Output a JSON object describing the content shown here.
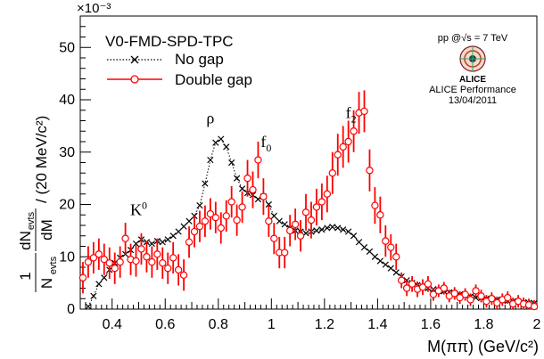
{
  "chart_data": {
    "type": "scatter",
    "title": "",
    "xlabel": "M(ππ) (GeV/c²)",
    "ylabel_parts": {
      "numer": "dN",
      "numer_sub": "evts",
      "denom": "N",
      "denom_sub": "evts",
      "right": "/ (20 MeV/c²)",
      "frac2_numer": "dN",
      "frac2_numer_sub": "evts",
      "frac2_denom": "dM",
      "one": "1"
    },
    "y_exponent": "×10⁻³",
    "xlim": [
      0.28,
      2.0
    ],
    "ylim": [
      0,
      0.056
    ],
    "x_ticks": [
      0.4,
      0.6,
      0.8,
      1.0,
      1.2,
      1.4,
      1.6,
      1.8,
      2.0
    ],
    "x_tick_labels": [
      "0.4",
      "0.6",
      "0.8",
      "1",
      "1.2",
      "1.4",
      "1.6",
      "1.8",
      "2"
    ],
    "y_ticks": [
      0,
      0.01,
      0.02,
      0.03,
      0.04,
      0.05
    ],
    "y_tick_labels": [
      "0",
      "10",
      "20",
      "30",
      "40",
      "50"
    ],
    "legend": {
      "header": "V0-FMD-SPD-TPC",
      "placement": "top-left",
      "entries": [
        "No gap",
        "Double gap"
      ]
    },
    "annotations": [
      {
        "text": "K",
        "sup": "0",
        "x": 0.5,
        "y": 0.018
      },
      {
        "text": "ρ",
        "x": 0.77,
        "y": 0.0355
      },
      {
        "text": "f",
        "sub": "0",
        "x": 0.98,
        "y": 0.031
      },
      {
        "text": "f",
        "sub": "2",
        "x": 1.3,
        "y": 0.0365
      }
    ],
    "info_box": {
      "line1": "pp @√s = 7 TeV",
      "logo_text": "ALICE",
      "line2": "ALICE Performance",
      "line3": "13/04/2011"
    },
    "series": [
      {
        "name": "No gap",
        "color": "#000000",
        "marker": "cross",
        "line": "dotted",
        "x": [
          0.31,
          0.33,
          0.35,
          0.37,
          0.39,
          0.41,
          0.43,
          0.45,
          0.47,
          0.49,
          0.51,
          0.53,
          0.55,
          0.57,
          0.59,
          0.61,
          0.63,
          0.65,
          0.67,
          0.69,
          0.71,
          0.73,
          0.75,
          0.77,
          0.79,
          0.81,
          0.83,
          0.85,
          0.87,
          0.89,
          0.91,
          0.93,
          0.95,
          0.97,
          0.99,
          1.01,
          1.03,
          1.05,
          1.07,
          1.09,
          1.11,
          1.13,
          1.15,
          1.17,
          1.19,
          1.21,
          1.23,
          1.25,
          1.27,
          1.29,
          1.31,
          1.33,
          1.35,
          1.37,
          1.39,
          1.41,
          1.43,
          1.45,
          1.47,
          1.49,
          1.51,
          1.53,
          1.55,
          1.57,
          1.59,
          1.61,
          1.63,
          1.65,
          1.67,
          1.69,
          1.71,
          1.73,
          1.75,
          1.77,
          1.79,
          1.81,
          1.83,
          1.85,
          1.87,
          1.89,
          1.91,
          1.93,
          1.95,
          1.97,
          1.99
        ],
        "y": [
          0.0005,
          0.0025,
          0.0048,
          0.006,
          0.0075,
          0.0088,
          0.0098,
          0.0105,
          0.0113,
          0.0125,
          0.0133,
          0.0128,
          0.0125,
          0.013,
          0.0128,
          0.0133,
          0.014,
          0.0148,
          0.0158,
          0.0168,
          0.0178,
          0.0198,
          0.024,
          0.0285,
          0.0318,
          0.0325,
          0.031,
          0.028,
          0.025,
          0.023,
          0.0222,
          0.0218,
          0.021,
          0.0215,
          0.02,
          0.0178,
          0.0168,
          0.0162,
          0.0155,
          0.015,
          0.0148,
          0.0145,
          0.0148,
          0.015,
          0.0152,
          0.0155,
          0.0157,
          0.0155,
          0.0152,
          0.0148,
          0.014,
          0.0128,
          0.0118,
          0.011,
          0.01,
          0.0092,
          0.0085,
          0.0078,
          0.007,
          0.0062,
          0.0055,
          0.005,
          0.0046,
          0.0043,
          0.004,
          0.0038,
          0.0036,
          0.0034,
          0.0032,
          0.003,
          0.0028,
          0.0026,
          0.0024,
          0.0022,
          0.0021,
          0.002,
          0.0019,
          0.0018,
          0.0017,
          0.0016,
          0.0015,
          0.0014,
          0.0013,
          0.0012,
          0.0011
        ],
        "err": [
          0.0006,
          0.0006,
          0.0006,
          0.0006,
          0.0006,
          0.0006,
          0.0006,
          0.0006,
          0.0006,
          0.0006,
          0.0006,
          0.0006,
          0.0006,
          0.0006,
          0.0006,
          0.0006,
          0.0006,
          0.0006,
          0.0006,
          0.0006,
          0.0006,
          0.0006,
          0.0006,
          0.0006,
          0.0006,
          0.0006,
          0.0006,
          0.0006,
          0.0006,
          0.0006,
          0.0006,
          0.0006,
          0.0006,
          0.0006,
          0.0006,
          0.0006,
          0.0006,
          0.0006,
          0.0006,
          0.0006,
          0.0006,
          0.0006,
          0.0006,
          0.0006,
          0.0006,
          0.0006,
          0.0006,
          0.0006,
          0.0006,
          0.0006,
          0.0006,
          0.0006,
          0.0006,
          0.0006,
          0.0006,
          0.0006,
          0.0006,
          0.0006,
          0.0006,
          0.0006,
          0.0006,
          0.0006,
          0.0006,
          0.0006,
          0.0006,
          0.0006,
          0.0006,
          0.0006,
          0.0006,
          0.0006,
          0.0006,
          0.0006,
          0.0006,
          0.0006,
          0.0006,
          0.0006,
          0.0006,
          0.0006,
          0.0006,
          0.0006,
          0.0006,
          0.0006,
          0.0006,
          0.0006,
          0.0006
        ]
      },
      {
        "name": "Double gap",
        "color": "#ff0000",
        "marker": "open-circle",
        "line": "solid",
        "x": [
          0.29,
          0.31,
          0.33,
          0.35,
          0.37,
          0.39,
          0.41,
          0.43,
          0.45,
          0.47,
          0.49,
          0.51,
          0.53,
          0.55,
          0.57,
          0.59,
          0.61,
          0.63,
          0.65,
          0.67,
          0.69,
          0.71,
          0.73,
          0.75,
          0.77,
          0.79,
          0.81,
          0.83,
          0.85,
          0.87,
          0.89,
          0.91,
          0.93,
          0.95,
          0.97,
          0.99,
          1.01,
          1.03,
          1.05,
          1.07,
          1.09,
          1.11,
          1.13,
          1.15,
          1.17,
          1.19,
          1.21,
          1.23,
          1.25,
          1.27,
          1.29,
          1.31,
          1.33,
          1.35,
          1.37,
          1.39,
          1.41,
          1.43,
          1.45,
          1.47,
          1.49,
          1.51,
          1.53,
          1.55,
          1.57,
          1.59,
          1.61,
          1.63,
          1.65,
          1.67,
          1.69,
          1.71,
          1.73,
          1.75,
          1.77,
          1.79,
          1.81,
          1.83,
          1.85,
          1.87,
          1.89,
          1.91,
          1.93,
          1.95,
          1.97,
          1.99
        ],
        "y": [
          0.006,
          0.009,
          0.0098,
          0.0105,
          0.0095,
          0.0088,
          0.0078,
          0.009,
          0.0135,
          0.0095,
          0.0092,
          0.0115,
          0.01,
          0.009,
          0.0105,
          0.0088,
          0.0078,
          0.0098,
          0.0075,
          0.0065,
          0.0128,
          0.0148,
          0.0158,
          0.0168,
          0.0182,
          0.0175,
          0.0155,
          0.0178,
          0.0205,
          0.017,
          0.0195,
          0.025,
          0.0228,
          0.0285,
          0.0215,
          0.0168,
          0.0135,
          0.0108,
          0.0108,
          0.015,
          0.0162,
          0.014,
          0.0185,
          0.017,
          0.0195,
          0.0205,
          0.022,
          0.026,
          0.0295,
          0.031,
          0.032,
          0.034,
          0.0375,
          0.0378,
          0.0265,
          0.0198,
          0.018,
          0.013,
          0.0118,
          0.01,
          0.0055,
          0.004,
          0.0048,
          0.0038,
          0.0042,
          0.0048,
          0.0028,
          0.0035,
          0.004,
          0.0025,
          0.003,
          0.0022,
          0.0028,
          0.0018,
          0.0035,
          0.0025,
          0.0015,
          0.002,
          0.0012,
          0.0018,
          0.0022,
          0.001,
          0.0015,
          0.001,
          0.0008,
          0.0005
        ],
        "err": [
          0.003,
          0.003,
          0.003,
          0.003,
          0.003,
          0.003,
          0.003,
          0.003,
          0.003,
          0.003,
          0.003,
          0.003,
          0.003,
          0.003,
          0.003,
          0.003,
          0.003,
          0.003,
          0.003,
          0.003,
          0.003,
          0.003,
          0.003,
          0.003,
          0.003,
          0.003,
          0.003,
          0.003,
          0.003,
          0.003,
          0.003,
          0.0035,
          0.0035,
          0.0035,
          0.0035,
          0.003,
          0.003,
          0.003,
          0.003,
          0.003,
          0.003,
          0.003,
          0.0035,
          0.0035,
          0.0035,
          0.0035,
          0.0035,
          0.004,
          0.004,
          0.004,
          0.004,
          0.004,
          0.004,
          0.004,
          0.004,
          0.0035,
          0.0035,
          0.003,
          0.0025,
          0.0025,
          0.0015,
          0.0015,
          0.0015,
          0.0015,
          0.0015,
          0.0015,
          0.0012,
          0.0012,
          0.0012,
          0.0012,
          0.0012,
          0.0012,
          0.0012,
          0.0012,
          0.0012,
          0.0012,
          0.0012,
          0.0012,
          0.0012,
          0.0012,
          0.0012,
          0.0012,
          0.0012,
          0.0012,
          0.0012,
          0.0012
        ]
      }
    ]
  }
}
